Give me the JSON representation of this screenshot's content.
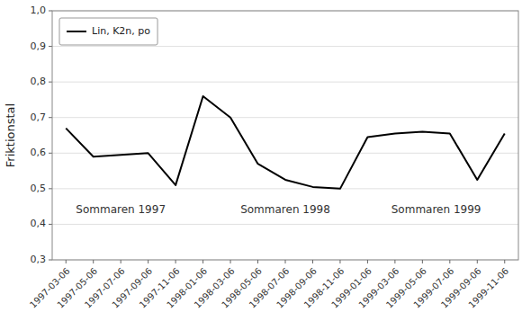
{
  "chart_data": {
    "type": "line",
    "y_label": "Friktionstal",
    "categories": [
      "1997-03-06",
      "1997-05-06",
      "1997-07-06",
      "1997-09-06",
      "1997-11-06",
      "1998-01-06",
      "1998-03-06",
      "1998-05-06",
      "1998-07-06",
      "1998-09-06",
      "1998-11-06",
      "1999-01-06",
      "1999-03-06",
      "1999-05-06",
      "1999-07-06",
      "1999-09-06",
      "1999-11-06"
    ],
    "series": [
      {
        "name": "Lin, K2n, po",
        "color": "#000000",
        "values": [
          0.67,
          0.59,
          0.595,
          0.6,
          0.51,
          0.76,
          0.7,
          0.57,
          0.525,
          0.505,
          0.5,
          0.645,
          0.655,
          0.66,
          0.655,
          0.525,
          0.655
        ]
      }
    ],
    "ylim": [
      0.3,
      1.0
    ],
    "yticks": [
      {
        "value": 0.3,
        "label": "0,3"
      },
      {
        "value": 0.4,
        "label": "0,4"
      },
      {
        "value": 0.5,
        "label": "0,5"
      },
      {
        "value": 0.6,
        "label": "0,6"
      },
      {
        "value": 0.7,
        "label": "0,7"
      },
      {
        "value": 0.8,
        "label": "0,8"
      },
      {
        "value": 0.9,
        "label": "0,9"
      },
      {
        "value": 1.0,
        "label": "1,0"
      }
    ],
    "annotations": [
      {
        "text": "Sommaren 1997",
        "x": 2.0,
        "y": 0.44
      },
      {
        "text": "Sommaren 1998",
        "x": 8.0,
        "y": 0.44
      },
      {
        "text": "Sommaren 1999",
        "x": 13.5,
        "y": 0.44
      }
    ],
    "grid": true,
    "legend": "upper left"
  }
}
